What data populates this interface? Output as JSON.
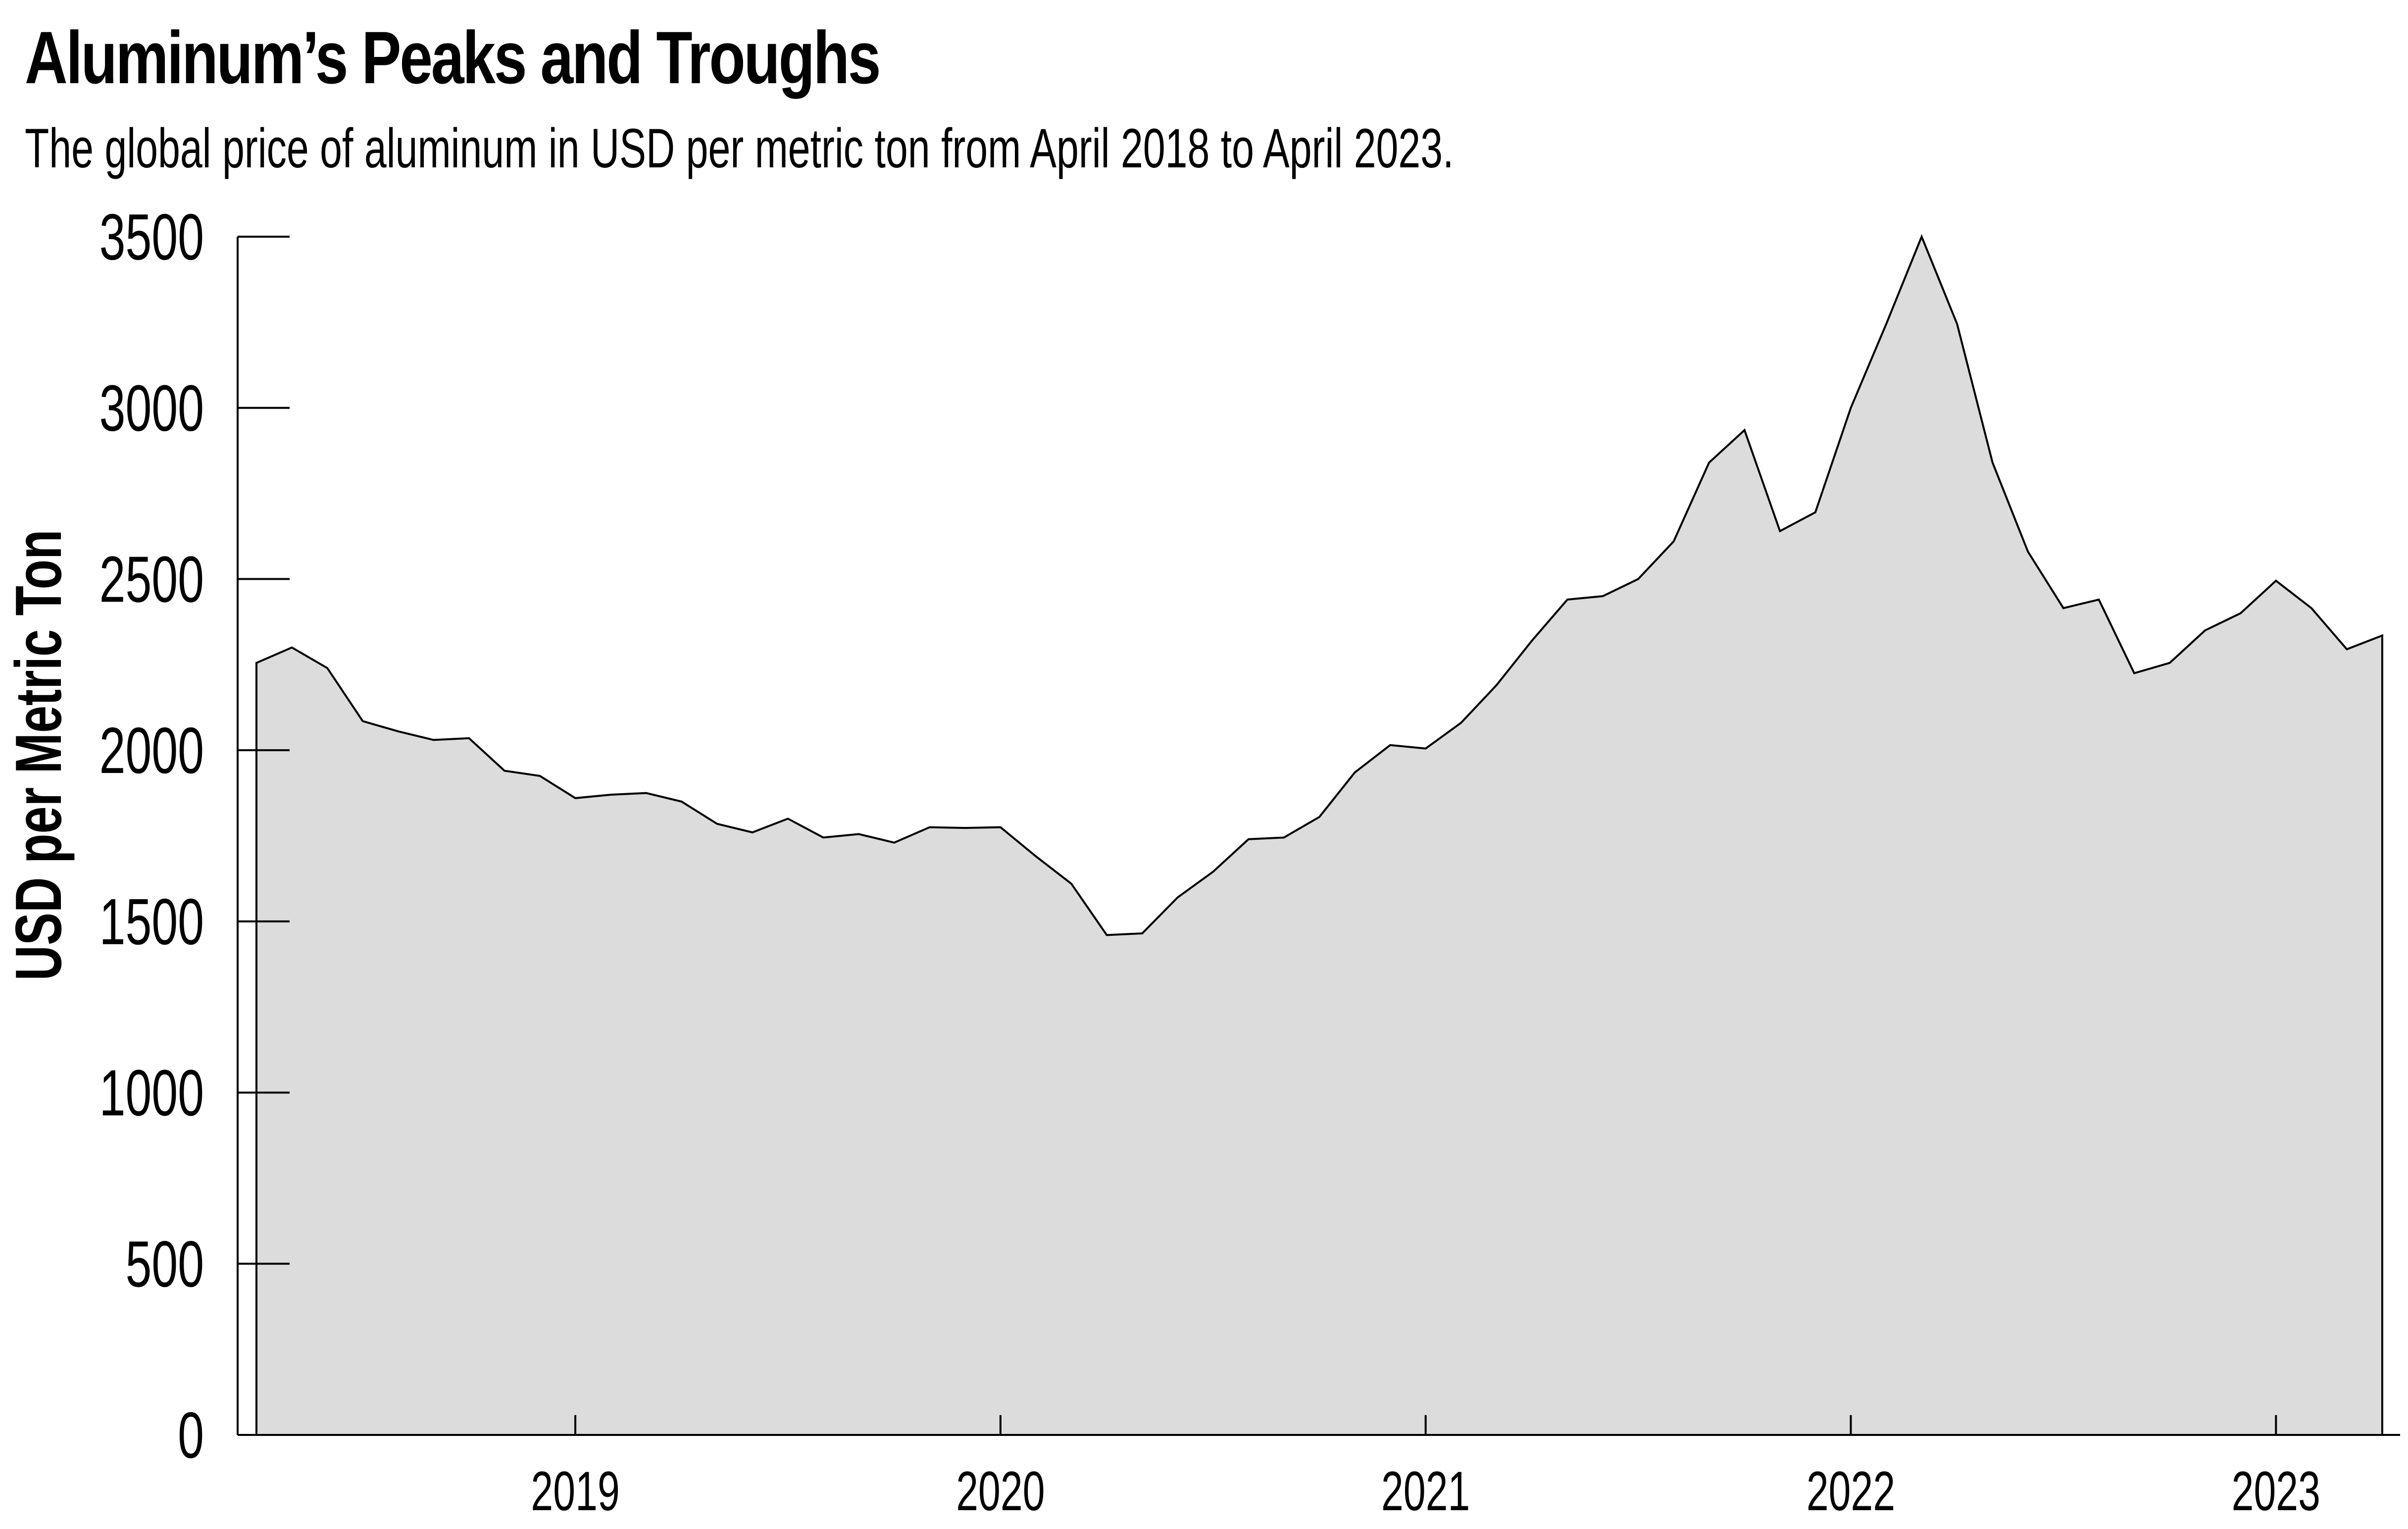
{
  "chart_data": {
    "type": "area",
    "title": "Aluminum’s Peaks and Troughs",
    "subtitle": "The global price of aluminum in USD per metric ton from April 2018 to April 2023.",
    "xlabel": "",
    "ylabel": "USD per Metric Ton",
    "ylim": [
      0,
      3500
    ],
    "yticks": [
      "0",
      "500",
      "1000",
      "1500",
      "2000",
      "2500",
      "3000",
      "3500"
    ],
    "xlim": [
      "2018-04",
      "2023-04"
    ],
    "xticks": [
      "2019",
      "2020",
      "2021",
      "2022",
      "2023"
    ],
    "grid": false,
    "fill_color": "#dcdcdc",
    "line_color": "#000000",
    "series": [
      {
        "x": [
          "2018-04",
          "2018-05",
          "2018-06",
          "2018-07",
          "2018-08",
          "2018-09",
          "2018-10",
          "2018-11",
          "2018-12",
          "2019-01",
          "2019-02",
          "2019-03",
          "2019-04",
          "2019-05",
          "2019-06",
          "2019-07",
          "2019-08",
          "2019-09",
          "2019-10",
          "2019-11",
          "2019-12",
          "2020-01",
          "2020-02",
          "2020-03",
          "2020-04",
          "2020-05",
          "2020-06",
          "2020-07",
          "2020-08",
          "2020-09",
          "2020-10",
          "2020-11",
          "2020-12",
          "2021-01",
          "2021-02",
          "2021-03",
          "2021-04",
          "2021-05",
          "2021-06",
          "2021-07",
          "2021-08",
          "2021-09",
          "2021-10",
          "2021-11",
          "2021-12",
          "2022-01",
          "2022-02",
          "2022-03",
          "2022-04",
          "2022-05",
          "2022-06",
          "2022-07",
          "2022-08",
          "2022-09",
          "2022-10",
          "2022-11",
          "2022-12",
          "2023-01",
          "2023-02",
          "2023-03",
          "2023-04"
        ],
        "values": [
          2255,
          2300,
          2240,
          2085,
          2055,
          2030,
          2035,
          1940,
          1925,
          1860,
          1870,
          1875,
          1850,
          1785,
          1760,
          1800,
          1745,
          1755,
          1730,
          1775,
          1773,
          1775,
          1690,
          1610,
          1460,
          1465,
          1570,
          1645,
          1740,
          1745,
          1805,
          1935,
          2015,
          2005,
          2080,
          2190,
          2320,
          2440,
          2450,
          2500,
          2610,
          2840,
          2935,
          2640,
          2695,
          3000,
          3245,
          3500,
          3245,
          2840,
          2580,
          2415,
          2440,
          2225,
          2255,
          2350,
          2400,
          2495,
          2415,
          2295,
          2335
        ]
      }
    ]
  }
}
